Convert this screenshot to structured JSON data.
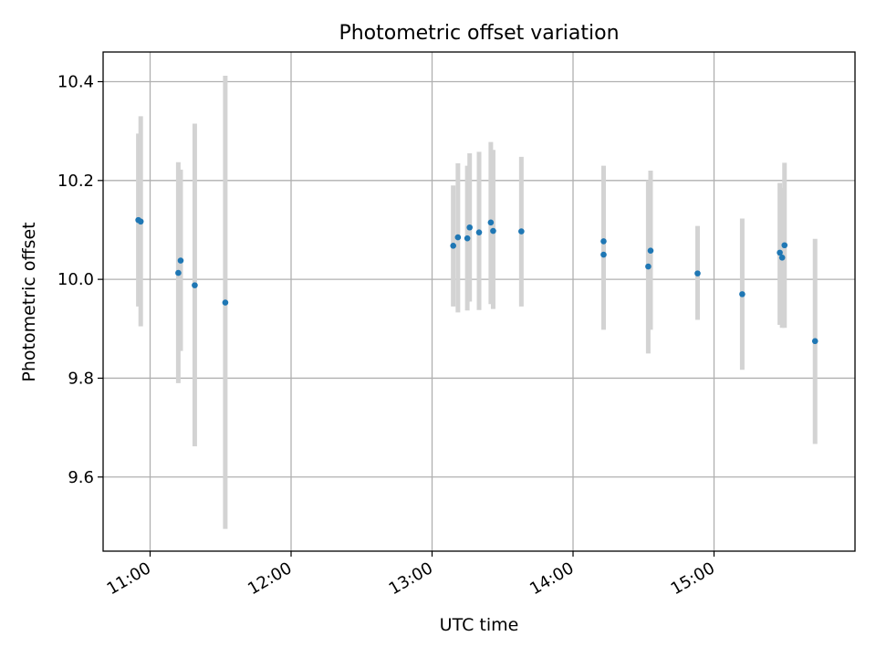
{
  "chart_data": {
    "type": "scatter",
    "title": "Photometric offset variation",
    "xlabel": "UTC time",
    "ylabel": "Photometric offset",
    "x_axis": "time",
    "xlim": [
      "10:40",
      "16:00"
    ],
    "ylim": [
      9.45,
      10.46
    ],
    "x_ticks": [
      "11:00",
      "12:00",
      "13:00",
      "14:00",
      "15:00"
    ],
    "y_ticks": [
      9.6,
      9.8,
      10.0,
      10.2,
      10.4
    ],
    "y_tick_labels": [
      "9.6",
      "9.8",
      "10.0",
      "10.2",
      "10.4"
    ],
    "grid": true,
    "legend": "none",
    "colors": {
      "marker": "#1f77b4",
      "errorbar": "#d3d3d3",
      "grid": "#b0b0b0"
    },
    "series": [
      {
        "points": [
          {
            "x": "10:55",
            "y": 10.12,
            "ylow": 9.945,
            "yhigh": 10.295
          },
          {
            "x": "10:56",
            "y": 10.117,
            "ylow": 9.905,
            "yhigh": 10.33
          },
          {
            "x": "11:12",
            "y": 10.013,
            "ylow": 9.79,
            "yhigh": 10.237
          },
          {
            "x": "11:13",
            "y": 10.038,
            "ylow": 9.855,
            "yhigh": 10.222
          },
          {
            "x": "11:19",
            "y": 9.988,
            "ylow": 9.662,
            "yhigh": 10.315
          },
          {
            "x": "11:32",
            "y": 9.953,
            "ylow": 9.495,
            "yhigh": 10.412
          },
          {
            "x": "13:09",
            "y": 10.068,
            "ylow": 9.945,
            "yhigh": 10.19
          },
          {
            "x": "13:11",
            "y": 10.085,
            "ylow": 9.933,
            "yhigh": 10.235
          },
          {
            "x": "13:15",
            "y": 10.083,
            "ylow": 9.937,
            "yhigh": 10.23
          },
          {
            "x": "13:16",
            "y": 10.105,
            "ylow": 9.955,
            "yhigh": 10.255
          },
          {
            "x": "13:20",
            "y": 10.095,
            "ylow": 9.938,
            "yhigh": 10.258
          },
          {
            "x": "13:25",
            "y": 10.115,
            "ylow": 9.95,
            "yhigh": 10.278
          },
          {
            "x": "13:26",
            "y": 10.098,
            "ylow": 9.94,
            "yhigh": 10.262
          },
          {
            "x": "13:38",
            "y": 10.097,
            "ylow": 9.945,
            "yhigh": 10.248
          },
          {
            "x": "14:13",
            "y": 10.077,
            "ylow": 9.93,
            "yhigh": 10.23
          },
          {
            "x": "14:13",
            "y": 10.05,
            "ylow": 9.898,
            "yhigh": 10.2
          },
          {
            "x": "14:32",
            "y": 10.026,
            "ylow": 9.85,
            "yhigh": 10.2
          },
          {
            "x": "14:33",
            "y": 10.058,
            "ylow": 9.898,
            "yhigh": 10.22
          },
          {
            "x": "14:53",
            "y": 10.012,
            "ylow": 9.918,
            "yhigh": 10.108
          },
          {
            "x": "15:12",
            "y": 9.97,
            "ylow": 9.817,
            "yhigh": 10.123
          },
          {
            "x": "15:28",
            "y": 10.054,
            "ylow": 9.908,
            "yhigh": 10.195
          },
          {
            "x": "15:29",
            "y": 10.044,
            "ylow": 9.902,
            "yhigh": 10.185
          },
          {
            "x": "15:30",
            "y": 10.069,
            "ylow": 9.902,
            "yhigh": 10.236
          },
          {
            "x": "15:43",
            "y": 9.875,
            "ylow": 9.667,
            "yhigh": 10.082
          }
        ]
      }
    ]
  }
}
